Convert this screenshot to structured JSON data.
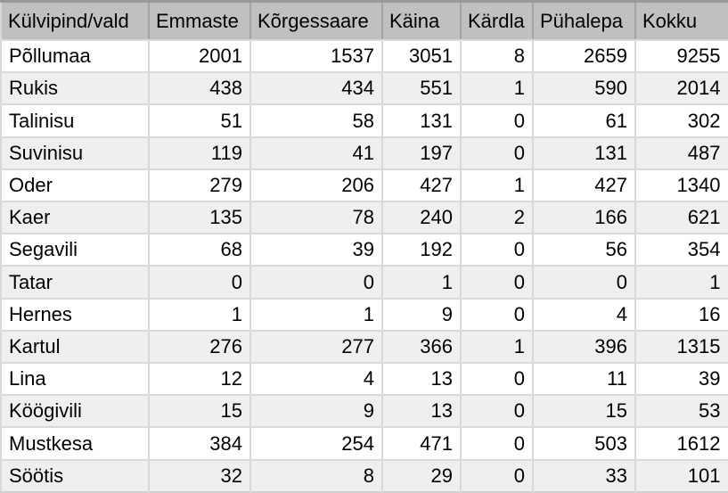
{
  "chart_data": {
    "type": "table",
    "corner_header": "Külvipind/vald",
    "columns": [
      "Külvipind/vald",
      "Emmaste",
      "Kõrgessaare",
      "Käina",
      "Kärdla",
      "Pühalepa",
      "Kokku"
    ],
    "rows": [
      {
        "label": "Põllumaa",
        "values": [
          2001,
          1537,
          3051,
          8,
          2659,
          9255
        ]
      },
      {
        "label": "Rukis",
        "values": [
          438,
          434,
          551,
          1,
          590,
          2014
        ]
      },
      {
        "label": "Talinisu",
        "values": [
          51,
          58,
          131,
          0,
          61,
          302
        ]
      },
      {
        "label": "Suvinisu",
        "values": [
          119,
          41,
          197,
          0,
          131,
          487
        ]
      },
      {
        "label": "Oder",
        "values": [
          279,
          206,
          427,
          1,
          427,
          1340
        ]
      },
      {
        "label": "Kaer",
        "values": [
          135,
          78,
          240,
          2,
          166,
          621
        ]
      },
      {
        "label": "Segavili",
        "values": [
          68,
          39,
          192,
          0,
          56,
          354
        ]
      },
      {
        "label": "Tatar",
        "values": [
          0,
          0,
          1,
          0,
          0,
          1
        ]
      },
      {
        "label": "Hernes",
        "values": [
          1,
          1,
          9,
          0,
          4,
          16
        ]
      },
      {
        "label": "Kartul",
        "values": [
          276,
          277,
          366,
          1,
          396,
          1315
        ]
      },
      {
        "label": "Lina",
        "values": [
          12,
          4,
          13,
          0,
          11,
          39
        ]
      },
      {
        "label": "Köögivili",
        "values": [
          15,
          9,
          13,
          0,
          15,
          53
        ]
      },
      {
        "label": "Mustkesa",
        "values": [
          384,
          254,
          471,
          0,
          503,
          1612
        ]
      },
      {
        "label": "Söötis",
        "values": [
          32,
          8,
          29,
          0,
          33,
          101
        ]
      }
    ]
  },
  "colors": {
    "header_bg": "#c0c0c0",
    "header_separator": "#a3a3a3",
    "row_bg": "#ffffff",
    "row_alt_bg": "#efefef",
    "body_border": "#d9d9d9",
    "top_border": "#999999",
    "text": "#000000"
  }
}
